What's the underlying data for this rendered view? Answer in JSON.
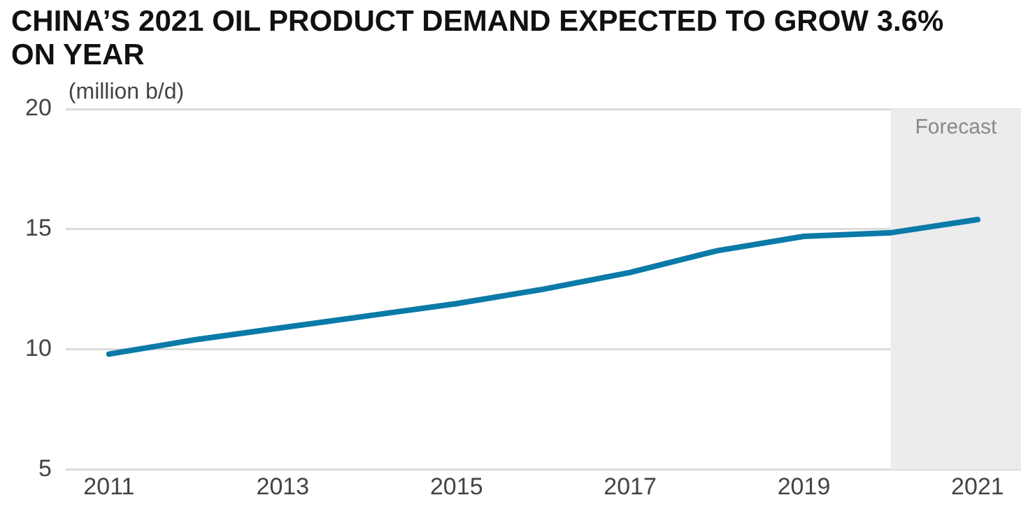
{
  "chart_data": {
    "type": "line",
    "title": "CHINA’S 2021 OIL PRODUCT DEMAND EXPECTED TO GROW 3.6% ON YEAR",
    "ylabel": "(million b/d)",
    "x": [
      2011,
      2012,
      2013,
      2014,
      2015,
      2016,
      2017,
      2018,
      2019,
      2020,
      2021
    ],
    "series": [
      {
        "color": "#0a7aa8",
        "values": [
          9.8,
          10.4,
          10.9,
          11.4,
          11.9,
          12.5,
          13.2,
          14.1,
          14.7,
          14.85,
          15.4
        ]
      }
    ],
    "xlim": [
      2010.5,
      2021.5
    ],
    "xticks": [
      2011,
      2013,
      2015,
      2017,
      2019,
      2021
    ],
    "ylim": [
      5,
      20
    ],
    "yticks": [
      5,
      10,
      15,
      20
    ],
    "grid": "y",
    "legend": false,
    "marker": "none",
    "line_style": "solid",
    "bands": [
      {
        "axis": "x",
        "from": 2020,
        "to": 2021.5,
        "label": "Forecast",
        "color": "#ececec"
      }
    ]
  }
}
